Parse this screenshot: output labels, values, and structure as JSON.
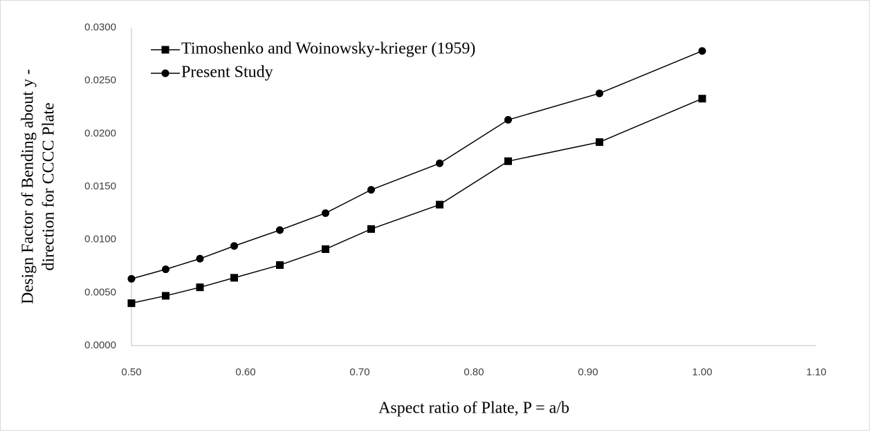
{
  "chart_data": {
    "type": "line",
    "xlabel": "Aspect ratio of Plate, P = a/b",
    "ylabel": [
      "Design Factor of Bending about y -",
      "direction for CCCC Plate"
    ],
    "x": [
      0.5,
      0.53,
      0.56,
      0.59,
      0.63,
      0.67,
      0.71,
      0.77,
      0.83,
      0.91,
      1.0
    ],
    "series": [
      {
        "name": "Timoshenko and Woinowsky-krieger (1959)",
        "color": "#000000",
        "marker": "square",
        "values": [
          0.004,
          0.0047,
          0.0055,
          0.0064,
          0.0076,
          0.0091,
          0.011,
          0.0133,
          0.0174,
          0.0192,
          0.0233
        ]
      },
      {
        "name": "Present Study",
        "color": "#000000",
        "marker": "circle",
        "values": [
          0.0063,
          0.0072,
          0.0082,
          0.0094,
          0.0109,
          0.0125,
          0.0147,
          0.0172,
          0.0213,
          0.0238,
          0.0278
        ]
      }
    ],
    "xlim": [
      0.5,
      1.1
    ],
    "xticks": [
      {
        "value": 0.5,
        "label": "0.50"
      },
      {
        "value": 0.6,
        "label": "0.60"
      },
      {
        "value": 0.7,
        "label": "0.70"
      },
      {
        "value": 0.8,
        "label": "0.80"
      },
      {
        "value": 0.9,
        "label": "0.90"
      },
      {
        "value": 1.0,
        "label": "1.00"
      },
      {
        "value": 1.1,
        "label": "1.10"
      }
    ],
    "ylim": [
      0,
      0.03
    ],
    "yticks": [
      {
        "value": 0,
        "label": "0.0000"
      },
      {
        "value": 0.005,
        "label": "0.0050"
      },
      {
        "value": 0.01,
        "label": "0.0100"
      },
      {
        "value": 0.015,
        "label": "0.0150"
      },
      {
        "value": 0.02,
        "label": "0.0200"
      },
      {
        "value": 0.025,
        "label": "0.0250"
      },
      {
        "value": 0.03,
        "label": "0.0300"
      }
    ],
    "grid": false,
    "legend": "upper left"
  }
}
